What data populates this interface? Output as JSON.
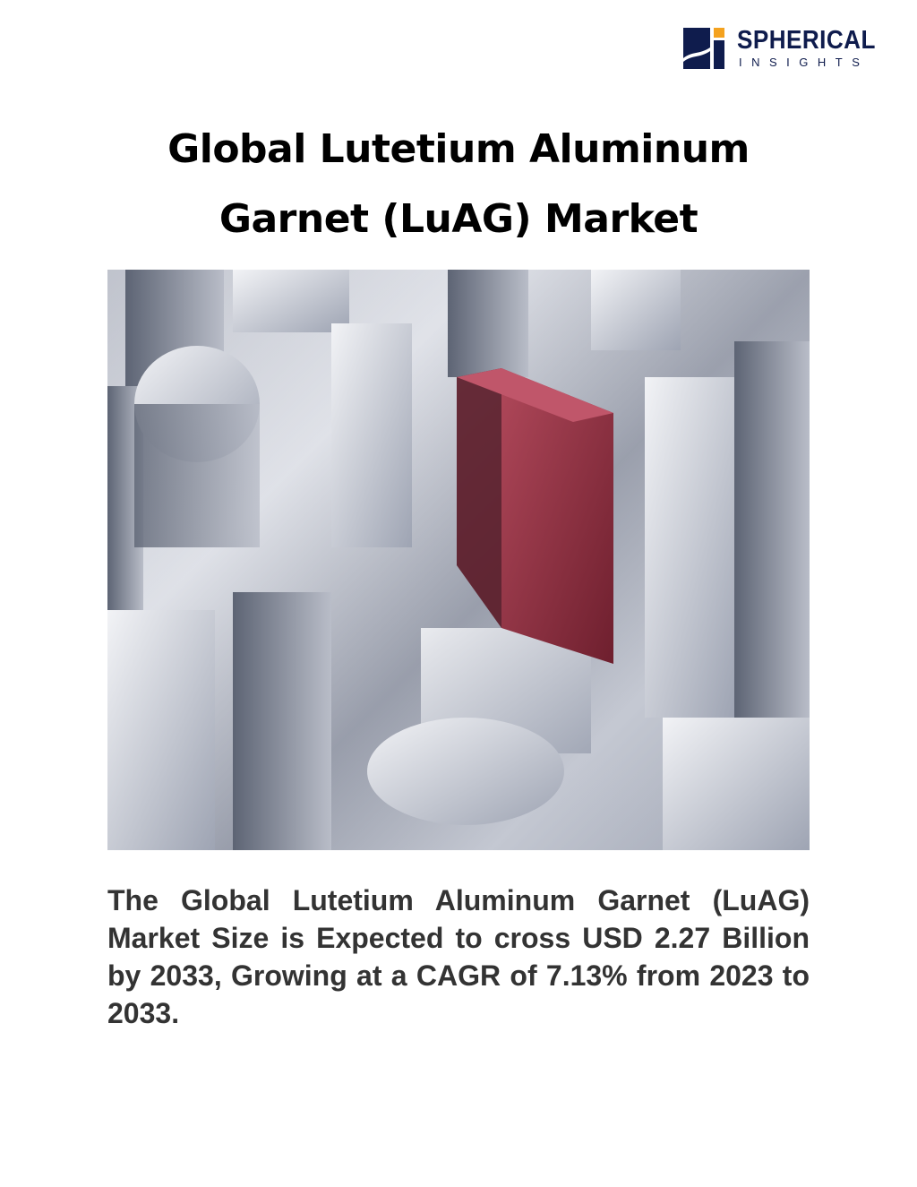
{
  "logo": {
    "line1": "SPHERICAL",
    "line2": "INSIGHTS",
    "colors": {
      "navy": "#0f1c4d",
      "accent": "#f4a21f"
    }
  },
  "document": {
    "title_line1": "Global Lutetium Aluminum",
    "title_line2": "Garnet (LuAG) Market",
    "hero_image": "metallic-blocks-with-red-block",
    "summary": "The Global Lutetium Aluminum Garnet (LuAG) Market Size is Expected to cross USD 2.27 Billion by 2033, Growing at a CAGR of 7.13% from 2023 to 2033."
  }
}
